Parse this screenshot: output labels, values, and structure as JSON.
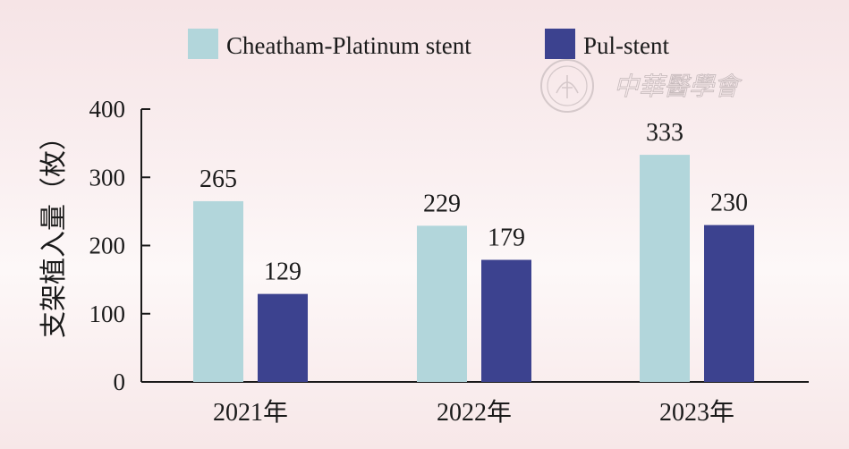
{
  "chart_data": {
    "type": "bar",
    "categories": [
      "2021年",
      "2022年",
      "2023年"
    ],
    "series": [
      {
        "name": "Cheatham-Platinum stent",
        "values": [
          265,
          229,
          333
        ],
        "color": "#b2d6db"
      },
      {
        "name": "Pul-stent",
        "values": [
          129,
          179,
          230
        ],
        "color": "#3c428f"
      }
    ],
    "title": "",
    "xlabel": "",
    "ylabel": "支架植入量（枚）",
    "ylim": [
      0,
      400
    ],
    "yticks": [
      0,
      100,
      200,
      300,
      400
    ],
    "grid": false,
    "legend_position": "top",
    "data_labels": true
  },
  "watermark": {
    "text": "中華醫學會",
    "icon": "society-seal-icon"
  }
}
